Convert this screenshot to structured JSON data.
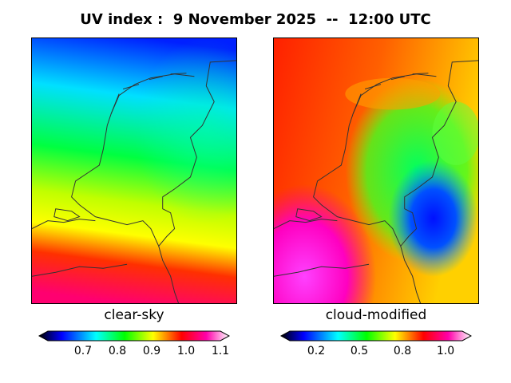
{
  "title": "UV index :  9 November 2025  --  12:00 UTC",
  "panels": [
    {
      "label": "clear-sky",
      "ticks": [
        "0.7",
        "0.8",
        "0.9",
        "1.0",
        "1.1"
      ]
    },
    {
      "label": "cloud-modified",
      "ticks": [
        "0.2",
        "0.5",
        "0.8",
        "1.0"
      ]
    }
  ],
  "colors": {
    "scale": [
      "#000000",
      "#0000ff",
      "#00ffff",
      "#00ff00",
      "#ffff00",
      "#ff0000",
      "#ff00aa",
      "#ffffff"
    ],
    "coastline": "#333333"
  }
}
